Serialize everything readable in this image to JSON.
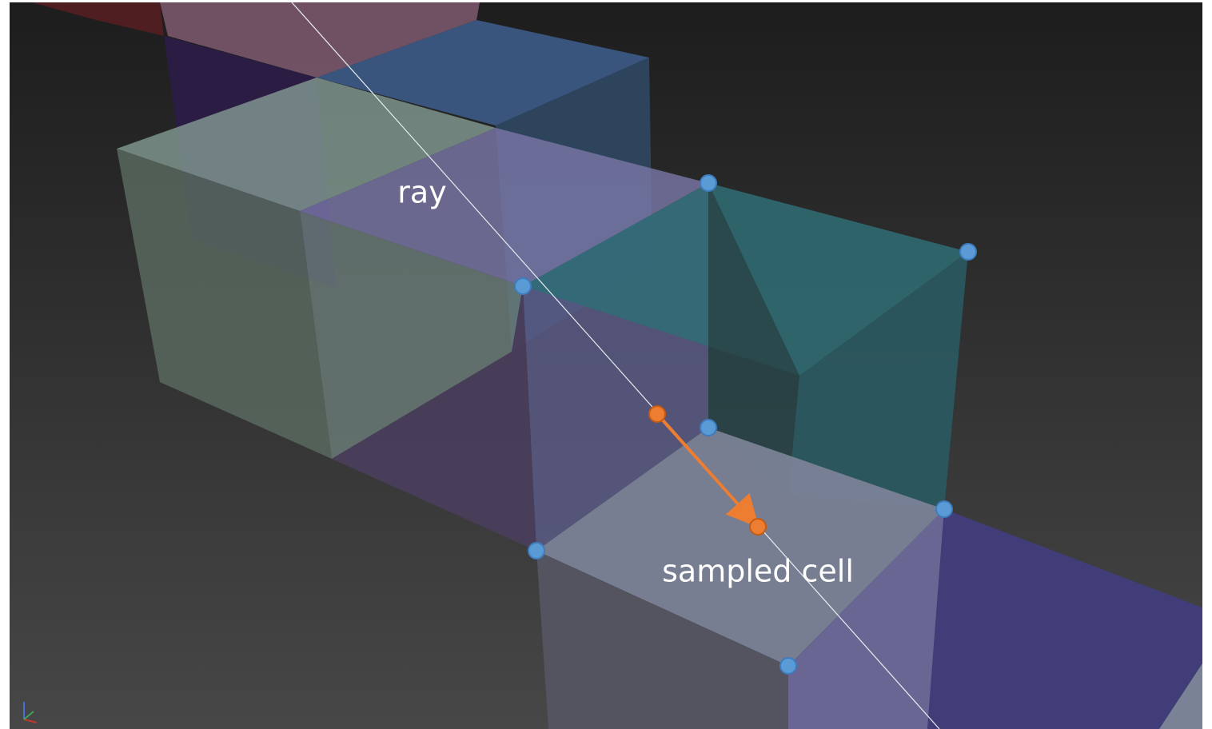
{
  "labels": {
    "ray": "ray",
    "sampled_cell": "sampled cell"
  }
}
